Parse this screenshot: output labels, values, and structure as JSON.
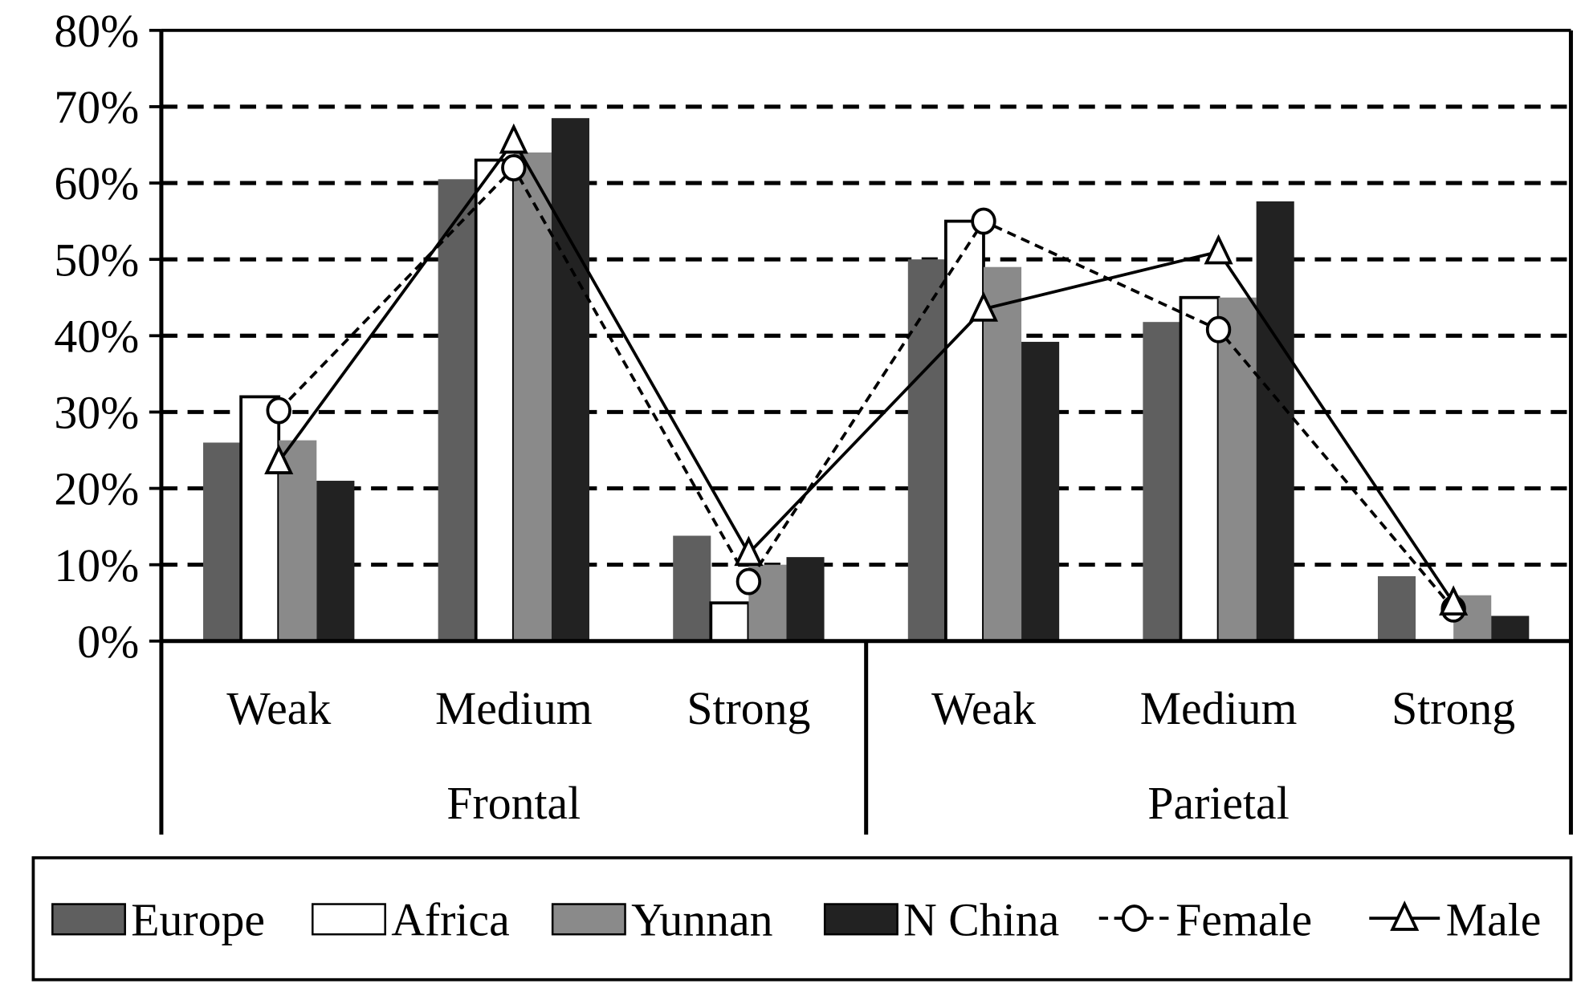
{
  "chart_data": {
    "type": "bar",
    "title": "",
    "xlabel": "",
    "ylabel": "",
    "ylim": [
      0,
      80
    ],
    "yticks": [
      "0%",
      "10%",
      "20%",
      "30%",
      "40%",
      "50%",
      "60%",
      "70%",
      "80%"
    ],
    "grid": true,
    "legend_position": "bottom",
    "groups": [
      "Frontal",
      "Parietal"
    ],
    "categories": [
      "Weak",
      "Medium",
      "Strong",
      "Weak",
      "Medium",
      "Strong"
    ],
    "series": [
      {
        "name": "Europe",
        "kind": "bar",
        "color": "#5f5f5f",
        "values": [
          26,
          60.5,
          13.8,
          50,
          41.8,
          8.5
        ]
      },
      {
        "name": "Africa",
        "kind": "bar",
        "color": "#ffffff",
        "values": [
          32,
          63,
          5,
          55,
          45,
          0
        ]
      },
      {
        "name": "Yunnan",
        "kind": "bar",
        "color": "#8a8a8a",
        "values": [
          26.3,
          64,
          10,
          49,
          45,
          6
        ]
      },
      {
        "name": "N China",
        "kind": "bar",
        "color": "#222222",
        "values": [
          21,
          68.5,
          11,
          39.2,
          57.6,
          3.3
        ]
      },
      {
        "name": "Female",
        "kind": "line",
        "style": "dashed",
        "marker": "circle",
        "values": [
          30.2,
          62,
          7.8,
          55,
          40.8,
          4.2
        ]
      },
      {
        "name": "Male",
        "kind": "line",
        "style": "solid",
        "marker": "triangle",
        "values": [
          23.5,
          65.5,
          11.5,
          43.5,
          51,
          5
        ]
      }
    ]
  }
}
